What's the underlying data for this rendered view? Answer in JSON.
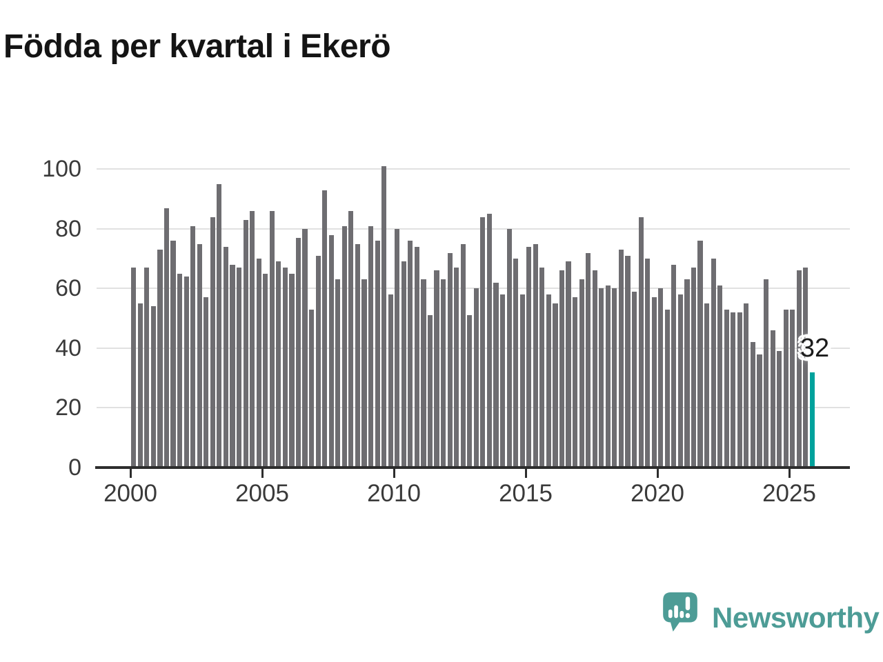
{
  "title": "Födda per kvartal i Ekerö",
  "colors": {
    "bar": "#6e6d71",
    "highlight": "#00a29c",
    "grid": "#e1e1e1",
    "axis": "#2d2d2d",
    "tick_text": "#3a3a3a",
    "title_text": "#141414",
    "logo": "#4d9c96",
    "background": "#ffffff"
  },
  "chart_data": {
    "type": "bar",
    "title": "Födda per kvartal i Ekerö",
    "frequency": "quarterly",
    "x_start": {
      "year": 2000,
      "quarter": 1
    },
    "x_end": {
      "year": 2025,
      "quarter": 4
    },
    "values": [
      67,
      55,
      67,
      54,
      73,
      87,
      76,
      65,
      64,
      81,
      75,
      57,
      84,
      95,
      74,
      68,
      67,
      83,
      86,
      70,
      65,
      86,
      69,
      67,
      65,
      77,
      80,
      53,
      71,
      93,
      78,
      63,
      81,
      86,
      75,
      63,
      81,
      76,
      101,
      58,
      80,
      69,
      76,
      74,
      63,
      51,
      66,
      63,
      72,
      67,
      75,
      51,
      60,
      84,
      85,
      62,
      58,
      80,
      70,
      58,
      74,
      75,
      67,
      58,
      55,
      66,
      69,
      57,
      63,
      72,
      66,
      60,
      61,
      60,
      73,
      71,
      59,
      84,
      70,
      57,
      60,
      53,
      68,
      58,
      63,
      67,
      76,
      55,
      70,
      61,
      53,
      52,
      52,
      55,
      42,
      38,
      63,
      46,
      39,
      53,
      53,
      66,
      67,
      32
    ],
    "highlight": {
      "index": 103,
      "value": 32,
      "label": "32"
    },
    "xticks": [
      "2000",
      "2005",
      "2010",
      "2015",
      "2020",
      "2025"
    ],
    "yticks": [
      0,
      20,
      40,
      60,
      80,
      100
    ],
    "ylim": [
      0,
      101
    ],
    "grid": "horizontal",
    "legend": "none",
    "xlabel": "",
    "ylabel": ""
  },
  "logo": {
    "text": "Newsworthy"
  }
}
